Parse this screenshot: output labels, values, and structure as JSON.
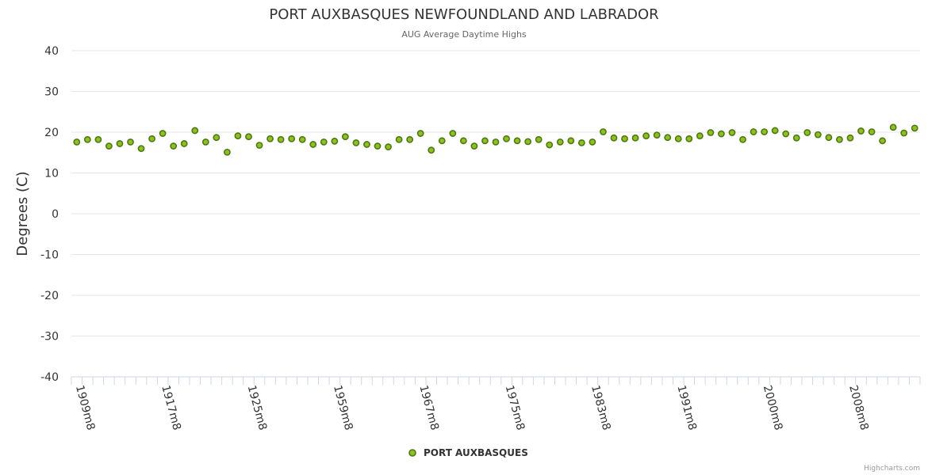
{
  "chart_data": {
    "type": "scatter",
    "title": "PORT AUXBASQUES NEWFOUNDLAND AND LABRADOR",
    "subtitle": "AUG Average Daytime Highs",
    "ylabel": "Degrees (C)",
    "xlabel": "",
    "ylim": [
      -40,
      40
    ],
    "yticks": [
      40,
      30,
      20,
      10,
      0,
      -10,
      -20,
      -30,
      -40
    ],
    "x_tick_labels": [
      "1909m8",
      "1917m8",
      "1925m8",
      "1959m8",
      "1967m8",
      "1975m8",
      "1983m8",
      "1991m8",
      "2000m8",
      "2008m8"
    ],
    "x_tick_label_index": [
      0,
      8,
      16,
      24,
      32,
      40,
      48,
      56,
      64,
      72
    ],
    "grid": true,
    "legend_position": "bottom-center",
    "series_color": "#90c020",
    "series_border": "#4a7a10",
    "series": [
      {
        "name": "PORT AUXBASQUES",
        "values": [
          17.6,
          18.2,
          18.2,
          16.6,
          17.2,
          17.6,
          16.0,
          18.4,
          19.7,
          16.6,
          17.2,
          20.4,
          17.6,
          18.7,
          15.1,
          19.1,
          18.9,
          16.8,
          18.4,
          18.2,
          18.4,
          18.2,
          17.0,
          17.6,
          17.8,
          18.9,
          17.4,
          17.0,
          16.6,
          16.4,
          18.2,
          18.2,
          19.7,
          15.6,
          17.9,
          19.7,
          17.9,
          16.6,
          17.9,
          17.6,
          18.4,
          17.9,
          17.7,
          18.2,
          16.9,
          17.6,
          17.9,
          17.4,
          17.6,
          20.1,
          18.6,
          18.4,
          18.6,
          19.1,
          19.3,
          18.7,
          18.4,
          18.4,
          19.1,
          19.9,
          19.6,
          19.9,
          18.2,
          20.1,
          20.1,
          20.4,
          19.6,
          18.6,
          19.9,
          19.4,
          18.7,
          18.2,
          18.6,
          20.3,
          20.1,
          17.9,
          21.2,
          19.8,
          21.0
        ]
      }
    ]
  },
  "credit": "Highcharts.com"
}
